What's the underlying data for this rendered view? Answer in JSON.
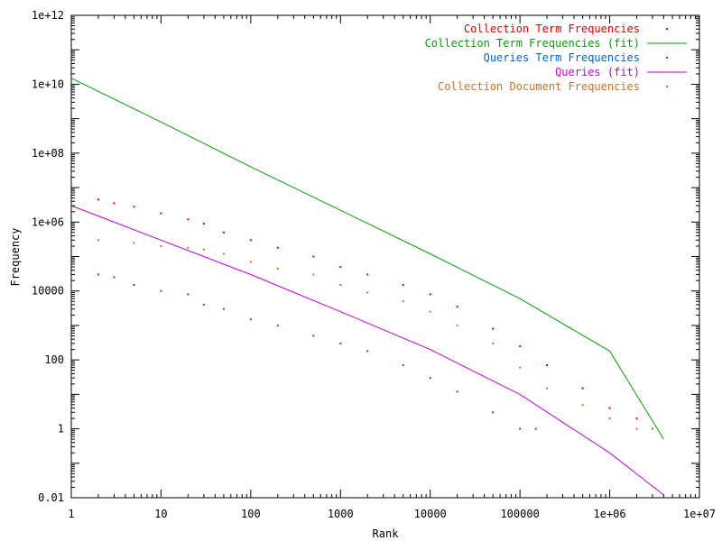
{
  "chart_data": {
    "type": "line",
    "title": "",
    "xlabel": "Rank",
    "ylabel": "Frequency",
    "x_scale": "log",
    "y_scale": "log",
    "xlim": [
      1,
      10000000
    ],
    "ylim": [
      0.01,
      1000000000000
    ],
    "x_ticks": [
      {
        "value": 1,
        "label": "1"
      },
      {
        "value": 10,
        "label": "10"
      },
      {
        "value": 100,
        "label": "100"
      },
      {
        "value": 1000,
        "label": "1000"
      },
      {
        "value": 10000,
        "label": "10000"
      },
      {
        "value": 100000,
        "label": "100000"
      },
      {
        "value": 1000000,
        "label": "1e+06"
      },
      {
        "value": 10000000,
        "label": "1e+07"
      }
    ],
    "y_ticks": [
      {
        "value": 0.01,
        "label": "0.01"
      },
      {
        "value": 1,
        "label": "1"
      },
      {
        "value": 100,
        "label": "100"
      },
      {
        "value": 10000,
        "label": "10000"
      },
      {
        "value": 1000000,
        "label": "1e+06"
      },
      {
        "value": 100000000,
        "label": "1e+08"
      },
      {
        "value": 10000000000,
        "label": "1e+10"
      },
      {
        "value": 1000000000000,
        "label": "1e+12"
      }
    ],
    "grid": false,
    "legend_position": "top-right",
    "series": [
      {
        "name": "Collection Term Frequencies",
        "style": "points",
        "color": "#e00000",
        "points": [
          [
            2,
            4500000
          ],
          [
            3,
            3500000
          ],
          [
            5,
            2800000
          ],
          [
            10,
            1800000
          ],
          [
            20,
            1200000
          ],
          [
            30,
            900000
          ],
          [
            50,
            500000
          ],
          [
            100,
            300000
          ],
          [
            200,
            180000
          ],
          [
            500,
            100000
          ],
          [
            1000,
            50000
          ],
          [
            2000,
            30000
          ],
          [
            5000,
            15000
          ],
          [
            10000,
            8000
          ],
          [
            20000,
            3500
          ],
          [
            50000,
            800
          ],
          [
            100000,
            250
          ],
          [
            200000,
            70
          ],
          [
            500000,
            15
          ],
          [
            1000000,
            4
          ],
          [
            2000000,
            2
          ],
          [
            3000000,
            1
          ]
        ]
      },
      {
        "name": "Collection Term Frequencies (fit)",
        "style": "line",
        "color": "#00a000",
        "points": [
          [
            1,
            15000000000
          ],
          [
            10,
            800000000
          ],
          [
            100,
            40000000
          ],
          [
            1000,
            2200000
          ],
          [
            10000,
            120000
          ],
          [
            100000,
            6000
          ],
          [
            1000000,
            180
          ],
          [
            4000000,
            0.5
          ]
        ]
      },
      {
        "name": "Queries Term Frequencies",
        "style": "points",
        "color": "#0066cc",
        "points": [
          [
            2,
            30000
          ],
          [
            3,
            25000
          ],
          [
            5,
            15000
          ],
          [
            10,
            10000
          ],
          [
            20,
            8000
          ],
          [
            30,
            4000
          ],
          [
            50,
            3000
          ],
          [
            100,
            1500
          ],
          [
            200,
            1000
          ],
          [
            500,
            500
          ],
          [
            1000,
            300
          ],
          [
            2000,
            180
          ],
          [
            5000,
            70
          ],
          [
            10000,
            30
          ],
          [
            20000,
            12
          ],
          [
            50000,
            3
          ],
          [
            100000,
            1
          ],
          [
            150000,
            1
          ]
        ]
      },
      {
        "name": "Queries (fit)",
        "style": "line",
        "color": "#c000d0",
        "points": [
          [
            1,
            3000000
          ],
          [
            10,
            300000
          ],
          [
            100,
            30000
          ],
          [
            1000,
            2500
          ],
          [
            10000,
            200
          ],
          [
            100000,
            10
          ],
          [
            1000000,
            0.2
          ],
          [
            4000000,
            0.012
          ]
        ]
      },
      {
        "name": "Collection Document Frequencies",
        "style": "points",
        "color": "#d07020",
        "points": [
          [
            2,
            300000
          ],
          [
            5,
            250000
          ],
          [
            10,
            200000
          ],
          [
            20,
            180000
          ],
          [
            30,
            160000
          ],
          [
            50,
            120000
          ],
          [
            100,
            70000
          ],
          [
            200,
            45000
          ],
          [
            500,
            30000
          ],
          [
            1000,
            15000
          ],
          [
            2000,
            9000
          ],
          [
            5000,
            5000
          ],
          [
            10000,
            2500
          ],
          [
            20000,
            1000
          ],
          [
            50000,
            300
          ],
          [
            100000,
            60
          ],
          [
            200000,
            15
          ],
          [
            500000,
            5
          ],
          [
            1000000,
            2
          ],
          [
            2000000,
            1
          ],
          [
            3000000,
            1
          ]
        ]
      }
    ]
  }
}
